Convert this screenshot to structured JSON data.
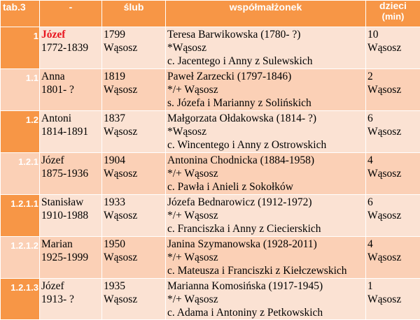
{
  "header": {
    "tab": "tab.3",
    "dash": "-",
    "marriage": "ślub",
    "spouse": "współmałżonek",
    "children_line1": "dzieci",
    "children_line2": "(min)"
  },
  "colors": {
    "header_bg": "#f79646",
    "row_light": "#fbe2d3",
    "row_dark": "#fbd0b6",
    "highlight_name": "#e8141e"
  },
  "rows": [
    {
      "id": "1",
      "name": "Józef",
      "name_highlight": true,
      "dates": "1772-1839",
      "year": "1799",
      "place": "Wąsosz",
      "spouse": "Teresa Barwikowska (1780- ?)",
      "spouse_event": "*Wąsosz",
      "spouse_parents": "c. Jacentego i Anny z Sulewskich",
      "children": "10",
      "children_place": "Wąsosz"
    },
    {
      "id": "1.1",
      "name": "Anna",
      "dates": "1801- ?",
      "year": "1819",
      "place": "Wąsosz",
      "spouse": "Paweł Zarzecki (1797-1846)",
      "spouse_event": "*/+ Wąsosz",
      "spouse_parents": "s. Józefa i Marianny z Solińskich",
      "children": "2",
      "children_place": "Wąsosz"
    },
    {
      "id": "1.2",
      "name": "Antoni",
      "dates": "1814-1891",
      "year": "1837",
      "place": "Wąsosz",
      "spouse": "Małgorzata Ołdakowska (1814- ?)",
      "spouse_event": "*Wąsosz",
      "spouse_parents": "c. Wincentego i Anny z Ostrowskich",
      "children": "6",
      "children_place": "Wąsosz"
    },
    {
      "id": "1.2.1",
      "name": "Józef",
      "dates": "1875-1936",
      "year": "1904",
      "place": "Wąsosz",
      "spouse": "Antonina Chodnicka (1884-1958)",
      "spouse_event": "*/+ Wąsosz",
      "spouse_parents": "c. Pawła i Anieli z Sokołków",
      "children": "4",
      "children_place": "Wąsosz"
    },
    {
      "id": "1.2.1.1",
      "name": "Stanisław",
      "dates": "1910-1988",
      "year": "1933",
      "place": "Wąsosz",
      "spouse": "Józefa Bednarowicz (1912-1972)",
      "spouse_event": "*/+ Wąsosz",
      "spouse_parents": "c. Franciszka i Anny z Ciecierskich",
      "children": "6",
      "children_place": "Wąsosz"
    },
    {
      "id": "1.2.1.2",
      "name": "Marian",
      "dates": "1925-1999",
      "year": "1950",
      "place": "Wąsosz",
      "spouse": "Janina Szymanowska (1928-2011)",
      "spouse_event": "*/+ Wąsosz",
      "spouse_parents": "c. Mateusza i Franciszki z Kiełczewskich",
      "children": "4",
      "children_place": "Wąsosz"
    },
    {
      "id": "1.2.1.3",
      "name": "Józef",
      "dates": "1913- ?",
      "year": "1935",
      "place": "Wąsosz",
      "spouse": "Marianna Komosińska (1917-1945)",
      "spouse_event": "*/+ Wąsosz",
      "spouse_parents": "c. Adama i Antoniny z Petkowskich",
      "children": "1",
      "children_place": "Wąsosz"
    }
  ]
}
